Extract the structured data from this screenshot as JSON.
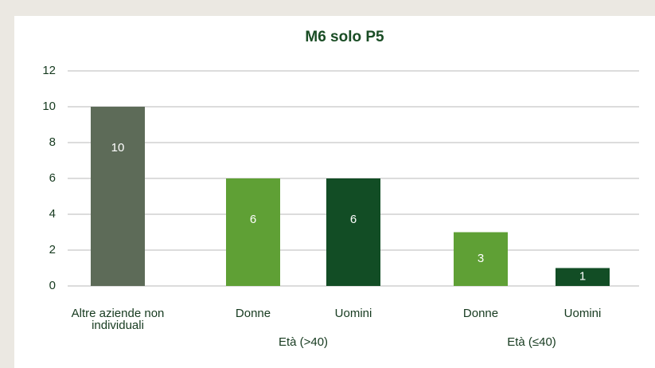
{
  "chart_data": {
    "type": "bar",
    "title": "M6 solo P5",
    "categories": [
      "Altre aziende non individuali",
      "Donne",
      "Uomini",
      "Donne",
      "Uomini"
    ],
    "groups": [
      null,
      "Età (>40)",
      "Età (>40)",
      "Età (≤40)",
      "Età (≤40)"
    ],
    "values": [
      10,
      6,
      6,
      3,
      1
    ],
    "colors": [
      "#5d6b58",
      "#5fa035",
      "#124d25",
      "#5fa035",
      "#124d25"
    ],
    "ylim": [
      0,
      12
    ],
    "yticks": [
      0,
      2,
      4,
      6,
      8,
      10,
      12
    ],
    "grid": true
  }
}
